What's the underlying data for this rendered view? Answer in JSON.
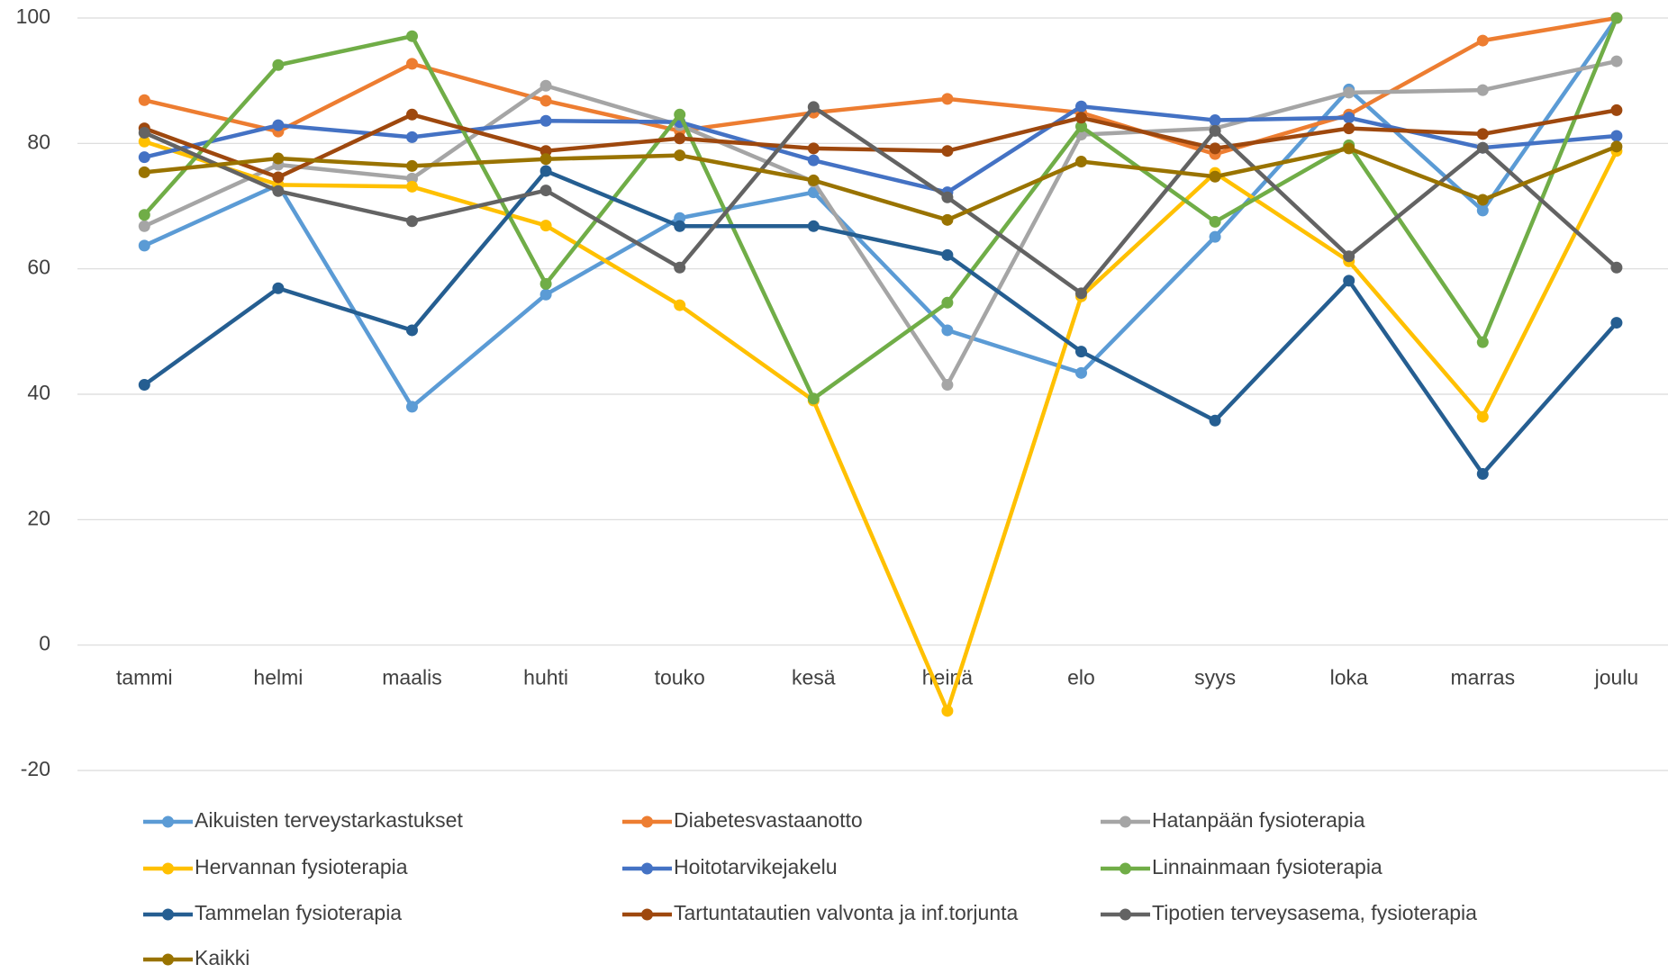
{
  "chart_data": {
    "type": "line",
    "categories": [
      "tammi",
      "helmi",
      "maalis",
      "huhti",
      "touko",
      "kesä",
      "heinä",
      "elo",
      "syys",
      "loka",
      "marras",
      "joulu"
    ],
    "series": [
      {
        "name": "Aikuisten terveystarkastukset",
        "color": "#5b9bd5",
        "values": [
          63.7,
          73.4,
          38,
          55.9,
          68.1,
          72.2,
          50.2,
          43.4,
          65.1,
          88.6,
          69.3,
          100
        ]
      },
      {
        "name": "Diabetesvastaanotto",
        "color": "#ed7d31",
        "values": [
          86.9,
          81.9,
          92.7,
          86.8,
          82,
          84.9,
          87.1,
          84.9,
          78.3,
          84.6,
          96.4,
          100
        ]
      },
      {
        "name": "Hatanpään fysioterapia",
        "color": "#a5a5a5",
        "values": [
          66.8,
          76.6,
          74.4,
          89.2,
          82.9,
          73.9,
          41.5,
          81.4,
          82.4,
          88.1,
          88.5,
          93.1
        ]
      },
      {
        "name": "Hervannan fysioterapia",
        "color": "#ffc000",
        "values": [
          80.3,
          73.4,
          73.1,
          66.9,
          54.2,
          39,
          -10.5,
          55.6,
          75.3,
          61.2,
          36.4,
          78.8
        ]
      },
      {
        "name": "Hoitotarvikejakelu",
        "color": "#4472c4",
        "values": [
          77.8,
          82.9,
          81,
          83.6,
          83.4,
          77.3,
          72.2,
          85.9,
          83.7,
          84.1,
          79.3,
          81.2
        ]
      },
      {
        "name": "Linnainmaan fysioterapia",
        "color": "#70ad47",
        "values": [
          68.6,
          92.5,
          97.1,
          57.6,
          84.6,
          39.3,
          54.6,
          82.7,
          67.5,
          79.7,
          48.3,
          100
        ]
      },
      {
        "name": "Tammelan fysioterapia",
        "color": "#255e91",
        "values": [
          41.5,
          56.9,
          50.2,
          75.6,
          66.8,
          66.8,
          62.2,
          46.8,
          35.8,
          58.1,
          27.3,
          51.4
        ]
      },
      {
        "name": "Tartuntatautien valvonta ja inf.torjunta",
        "color": "#9e480e",
        "values": [
          82.4,
          74.6,
          84.6,
          78.8,
          80.8,
          79.2,
          78.8,
          84.1,
          79.2,
          82.4,
          81.5,
          85.3
        ]
      },
      {
        "name": "Tipotien terveysasema, fysioterapia",
        "color": "#636363",
        "values": [
          81.7,
          72.4,
          67.6,
          72.5,
          60.2,
          85.8,
          71.4,
          56.1,
          82,
          62,
          79.3,
          60.2
        ]
      },
      {
        "name": "Kaikki",
        "color": "#997300",
        "values": [
          75.4,
          77.6,
          76.4,
          77.5,
          78.1,
          74.1,
          67.8,
          77.1,
          74.7,
          79.2,
          71,
          79.5
        ]
      }
    ],
    "ylim": [
      -20,
      100
    ],
    "yticks": [
      -20,
      0,
      20,
      40,
      60,
      80,
      100
    ],
    "grid": true,
    "legend": "bottom"
  }
}
